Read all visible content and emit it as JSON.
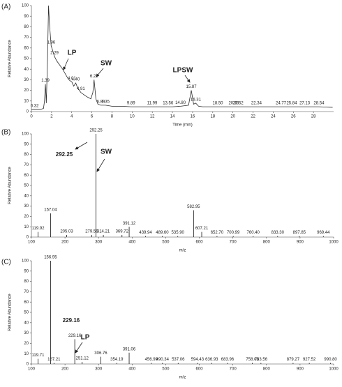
{
  "chart_data": [
    {
      "type": "line",
      "panel": "(A)",
      "ylabel": "Relative Abundance",
      "xlabel": "Time (min)",
      "xlim": [
        0,
        30
      ],
      "xticks": [
        0,
        2,
        4,
        6,
        8,
        10,
        12,
        14,
        16,
        18,
        20,
        22,
        24,
        26,
        28
      ],
      "ylim": [
        0,
        100
      ],
      "yticks": [
        0,
        10,
        20,
        30,
        40,
        50,
        60,
        70,
        80,
        90,
        100
      ],
      "color": "#2b2b2b",
      "x": [
        0,
        0.32,
        0.6,
        0.9,
        1.2,
        1.3,
        1.39,
        1.48,
        1.6,
        1.7,
        1.8,
        1.96,
        2.1,
        2.29,
        2.5,
        2.8,
        3.1,
        3.4,
        3.7,
        4.01,
        4.2,
        4.4,
        4.6,
        4.91,
        5.2,
        5.5,
        5.9,
        6.1,
        6.22,
        6.4,
        6.6,
        6.89,
        7.35,
        8,
        9,
        9.89,
        11,
        11.99,
        13,
        13.56,
        14,
        14.8,
        15.6,
        15.87,
        16.1,
        16.31,
        16.6,
        17,
        18.5,
        20.09,
        20.52,
        22.34,
        24.77,
        25.84,
        27.13,
        28.54,
        29.9
      ],
      "values": [
        2,
        2,
        2,
        2,
        3,
        10,
        26,
        8,
        50,
        100,
        82,
        62,
        58,
        52,
        48,
        44,
        40,
        35,
        30,
        28,
        24,
        27,
        22,
        18,
        16,
        14,
        12,
        18,
        30,
        12,
        7,
        6,
        6,
        5,
        5,
        4.5,
        4.5,
        4.5,
        4.5,
        4.5,
        4.5,
        5,
        6,
        20,
        7,
        8,
        5,
        4.5,
        4.5,
        4.5,
        4.5,
        4.5,
        4.5,
        4.5,
        4.5,
        4.5,
        4
      ],
      "peaks": {
        "x": [
          0.32,
          1.39,
          1.96,
          2.29,
          4.01,
          4.4,
          4.91,
          6.22,
          6.89,
          7.35,
          9.89,
          11.99,
          13.56,
          14.8,
          15.87,
          16.31,
          18.5,
          20.09,
          20.52,
          22.34,
          24.77,
          25.84,
          27.13,
          28.54
        ],
        "labels": [
          "0.32",
          "1.39",
          "1.96",
          "2.29",
          "4.01",
          "4.40",
          "4.91",
          "6.22",
          "6.89",
          "7.35",
          "9.89",
          "11.99",
          "13.56",
          "14.80",
          "15.87",
          "16.31",
          "18.50",
          "20.09",
          "20.52",
          "22.34",
          "24.77",
          "25.84",
          "27.13",
          "28.54"
        ]
      },
      "annotations": [
        "LP",
        "SW",
        "LPSW"
      ]
    },
    {
      "type": "stick",
      "panel": "(B)",
      "ylabel": "Relative Abundance",
      "xlabel": "m/z",
      "xlim": [
        100,
        1000
      ],
      "xticks": [
        100,
        200,
        300,
        400,
        500,
        600,
        700,
        800,
        900,
        1000
      ],
      "ylim": [
        0,
        100
      ],
      "yticks": [
        0,
        10,
        20,
        30,
        40,
        50,
        60,
        70,
        80,
        90,
        100
      ],
      "color": "#111",
      "x": [
        119.92,
        157.04,
        205.03,
        279.56,
        292.25,
        314.21,
        369.72,
        391.12,
        439.94,
        489.6,
        535.9,
        582.95,
        607.21,
        652.7,
        700.99,
        760.4,
        833.3,
        897.85,
        969.44
      ],
      "labels": [
        "119.92",
        "157.04",
        "205.03",
        "279.56",
        "292.25",
        "314.21",
        "369.72",
        "391.12",
        "439.94",
        "489.60",
        "535.90",
        "582.95",
        "607.21",
        "652.70",
        "700.99",
        "760.40",
        "833.30",
        "897.85",
        "969.44"
      ],
      "values": [
        5,
        23,
        2,
        2,
        100,
        2,
        2,
        10,
        1,
        1,
        1,
        26,
        5,
        1,
        1,
        1,
        1,
        1,
        1
      ],
      "annotations": [
        "292.25",
        "SW"
      ]
    },
    {
      "type": "stick",
      "panel": "(C)",
      "ylabel": "Relative Abundance",
      "xlabel": "m/z",
      "xlim": [
        100,
        1000
      ],
      "xticks": [
        100,
        200,
        300,
        400,
        500,
        600,
        700,
        800,
        900,
        1000
      ],
      "ylim": [
        0,
        100
      ],
      "yticks": [
        0,
        10,
        20,
        30,
        40,
        50,
        60,
        70,
        80,
        90,
        100
      ],
      "color": "#111",
      "x": [
        119.71,
        156.95,
        167.21,
        229.16,
        251.12,
        306.76,
        354.19,
        391.06,
        456.99,
        490.34,
        537.06,
        594.43,
        636.93,
        683.96,
        758.03,
        783.56,
        879.27,
        927.52,
        990.8
      ],
      "labels": [
        "119.71",
        "156.95",
        "167.21",
        "229.16",
        "251.12",
        "306.76",
        "354.19",
        "391.06",
        "456.99",
        "490.34",
        "537.06",
        "594.43",
        "636.93",
        "683.96",
        "758.03",
        "783.56",
        "879.27",
        "927.52",
        "990.80"
      ],
      "values": [
        5,
        100,
        1,
        24,
        2,
        7,
        1,
        11,
        1,
        1,
        1,
        1,
        1,
        1,
        1,
        1,
        1,
        1,
        1
      ],
      "annotations": [
        "229.16",
        "LP"
      ]
    }
  ]
}
